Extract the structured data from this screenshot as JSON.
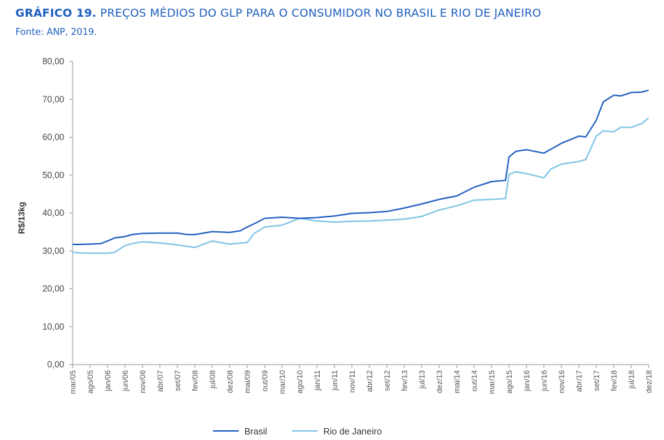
{
  "chart_data": {
    "type": "line",
    "title_lead": "GRÁFICO 19.",
    "title": "PREÇOS MÉDIOS DO GLP PARA O CONSUMIDOR NO BRASIL E RIO DE JANEIRO",
    "source": "Fonte: ANP, 2019.",
    "ylabel": "R$/13kg",
    "ylim": [
      0,
      80
    ],
    "yticks": [
      "0,00",
      "10,00",
      "20,00",
      "30,00",
      "40,00",
      "50,00",
      "60,00",
      "70,00",
      "80,00"
    ],
    "xticks": [
      "mar/05",
      "ago/05",
      "jan/06",
      "jun/06",
      "nov/06",
      "abr/07",
      "set/07",
      "fev/08",
      "jul/08",
      "dez/08",
      "mai/09",
      "out/09",
      "mar/10",
      "ago/10",
      "jan/11",
      "jun/11",
      "nov/11",
      "abr/12",
      "set/12",
      "fev/13",
      "jul/13",
      "dez/13",
      "mai/14",
      "out/14",
      "mar/15",
      "ago/15",
      "jan/16",
      "jun/16",
      "nov/16",
      "abr/17",
      "set/17",
      "fev/18",
      "jul/18",
      "dez/18"
    ],
    "grid": false,
    "legend_position": "bottom",
    "series": [
      {
        "name": "Brasil",
        "color": "#1F5FBF",
        "points": [
          [
            "mar/05",
            31.7
          ],
          [
            "mai/05",
            31.7
          ],
          [
            "ago/05",
            31.8
          ],
          [
            "nov/05",
            31.9
          ],
          [
            "jan/06",
            32.6
          ],
          [
            "mar/06",
            33.4
          ],
          [
            "jun/06",
            33.8
          ],
          [
            "ago/06",
            34.3
          ],
          [
            "nov/06",
            34.6
          ],
          [
            "abr/07",
            34.7
          ],
          [
            "set/07",
            34.7
          ],
          [
            "dez/07",
            34.3
          ],
          [
            "fev/08",
            34.3
          ],
          [
            "jul/08",
            35.1
          ],
          [
            "dez/08",
            34.9
          ],
          [
            "mar/09",
            35.3
          ],
          [
            "mai/09",
            36.3
          ],
          [
            "ago/09",
            37.6
          ],
          [
            "out/09",
            38.6
          ],
          [
            "mar/10",
            38.9
          ],
          [
            "ago/10",
            38.6
          ],
          [
            "jan/11",
            38.8
          ],
          [
            "jun/11",
            39.2
          ],
          [
            "nov/11",
            39.9
          ],
          [
            "abr/12",
            40.1
          ],
          [
            "set/12",
            40.4
          ],
          [
            "fev/13",
            41.3
          ],
          [
            "jul/13",
            42.4
          ],
          [
            "dez/13",
            43.6
          ],
          [
            "mai/14",
            44.5
          ],
          [
            "out/14",
            46.8
          ],
          [
            "mar/15",
            48.3
          ],
          [
            "jul/15",
            48.6
          ],
          [
            "ago/15",
            54.8
          ],
          [
            "out/15",
            56.3
          ],
          [
            "jan/16",
            56.7
          ],
          [
            "jun/16",
            55.8
          ],
          [
            "nov/16",
            58.4
          ],
          [
            "abr/17",
            60.3
          ],
          [
            "jun/17",
            60.1
          ],
          [
            "set/17",
            64.5
          ],
          [
            "nov/17",
            69.3
          ],
          [
            "fev/18",
            71.1
          ],
          [
            "abr/18",
            70.9
          ],
          [
            "jul/18",
            71.8
          ],
          [
            "out/18",
            71.9
          ],
          [
            "dez/18",
            72.4
          ]
        ]
      },
      {
        "name": "Rio de Janeiro",
        "color": "#7CC3E6",
        "points": [
          [
            "mar/05",
            29.6
          ],
          [
            "mai/05",
            29.5
          ],
          [
            "ago/05",
            29.4
          ],
          [
            "jan/06",
            29.4
          ],
          [
            "mar/06",
            29.6
          ],
          [
            "jun/06",
            31.4
          ],
          [
            "ago/06",
            31.9
          ],
          [
            "nov/06",
            32.4
          ],
          [
            "abr/07",
            32.1
          ],
          [
            "set/07",
            31.6
          ],
          [
            "fev/08",
            30.9
          ],
          [
            "jul/08",
            32.6
          ],
          [
            "dez/08",
            31.8
          ],
          [
            "mai/09",
            32.2
          ],
          [
            "jul/09",
            34.6
          ],
          [
            "out/09",
            36.3
          ],
          [
            "mar/10",
            36.8
          ],
          [
            "ago/10",
            38.6
          ],
          [
            "jan/11",
            37.9
          ],
          [
            "jun/11",
            37.6
          ],
          [
            "nov/11",
            37.8
          ],
          [
            "abr/12",
            37.9
          ],
          [
            "set/12",
            38.1
          ],
          [
            "fev/13",
            38.4
          ],
          [
            "jul/13",
            39.1
          ],
          [
            "dez/13",
            40.8
          ],
          [
            "mai/14",
            41.9
          ],
          [
            "out/14",
            43.4
          ],
          [
            "mar/15",
            43.6
          ],
          [
            "jul/15",
            43.8
          ],
          [
            "ago/15",
            50.2
          ],
          [
            "out/15",
            50.9
          ],
          [
            "jan/16",
            50.4
          ],
          [
            "jun/16",
            49.3
          ],
          [
            "ago/16",
            51.6
          ],
          [
            "nov/16",
            52.9
          ],
          [
            "abr/17",
            53.6
          ],
          [
            "jun/17",
            54.1
          ],
          [
            "set/17",
            60.3
          ],
          [
            "nov/17",
            61.7
          ],
          [
            "fev/18",
            61.4
          ],
          [
            "abr/18",
            62.6
          ],
          [
            "jul/18",
            62.6
          ],
          [
            "out/18",
            63.6
          ],
          [
            "dez/18",
            65.1
          ]
        ]
      }
    ]
  }
}
